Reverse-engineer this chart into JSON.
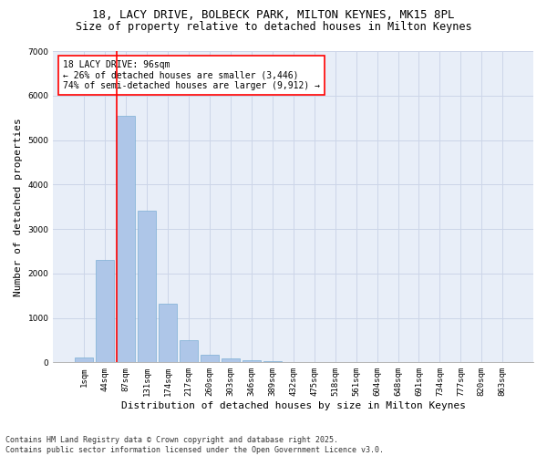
{
  "title_line1": "18, LACY DRIVE, BOLBECK PARK, MILTON KEYNES, MK15 8PL",
  "title_line2": "Size of property relative to detached houses in Milton Keynes",
  "xlabel": "Distribution of detached houses by size in Milton Keynes",
  "ylabel": "Number of detached properties",
  "bar_values": [
    100,
    2300,
    5550,
    3420,
    1320,
    490,
    175,
    90,
    55,
    30,
    0,
    0,
    0,
    0,
    0,
    0,
    0,
    0,
    0,
    0,
    0
  ],
  "categories": [
    "1sqm",
    "44sqm",
    "87sqm",
    "131sqm",
    "174sqm",
    "217sqm",
    "260sqm",
    "303sqm",
    "346sqm",
    "389sqm",
    "432sqm",
    "475sqm",
    "518sqm",
    "561sqm",
    "604sqm",
    "648sqm",
    "691sqm",
    "734sqm",
    "777sqm",
    "820sqm",
    "863sqm"
  ],
  "bar_color": "#aec6e8",
  "bar_edge_color": "#7bafd4",
  "vline_x": 1.58,
  "vline_color": "red",
  "annotation_text": "18 LACY DRIVE: 96sqm\n← 26% of detached houses are smaller (3,446)\n74% of semi-detached houses are larger (9,912) →",
  "annotation_box_color": "red",
  "annotation_bg": "white",
  "ylim": [
    0,
    7000
  ],
  "yticks": [
    0,
    1000,
    2000,
    3000,
    4000,
    5000,
    6000,
    7000
  ],
  "grid_color": "#ccd5e8",
  "background_color": "#e8eef8",
  "footer_line1": "Contains HM Land Registry data © Crown copyright and database right 2025.",
  "footer_line2": "Contains public sector information licensed under the Open Government Licence v3.0.",
  "title_fontsize": 9,
  "subtitle_fontsize": 8.5,
  "axis_label_fontsize": 8,
  "tick_fontsize": 6.5,
  "annotation_fontsize": 7,
  "footer_fontsize": 6
}
